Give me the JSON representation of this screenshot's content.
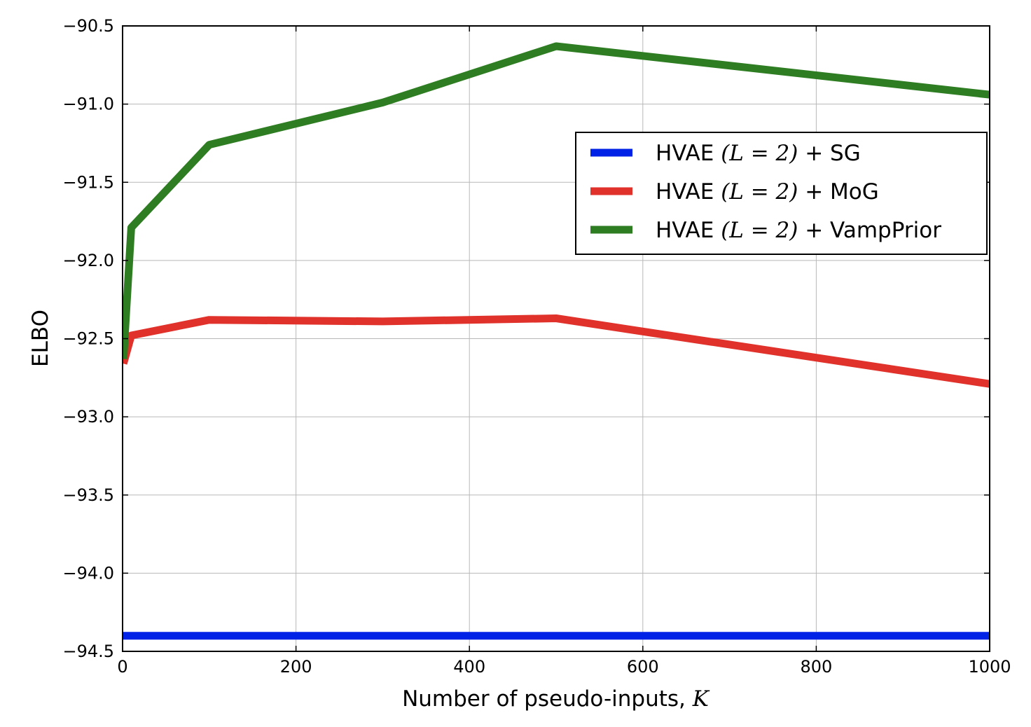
{
  "chart_data": {
    "type": "line",
    "xlabel_prefix": "Number of pseudo-inputs, ",
    "xlabel_var": "K",
    "ylabel": "ELBO",
    "xlim": [
      0,
      1000
    ],
    "ylim": [
      -94.5,
      -90.5
    ],
    "x_ticks": [
      "0",
      "200",
      "400",
      "600",
      "800",
      "1000"
    ],
    "y_ticks": [
      "−90.5",
      "−91.0",
      "−91.5",
      "−92.0",
      "−92.5",
      "−93.0",
      "−93.5",
      "−94.0",
      "−94.5"
    ],
    "grid": true,
    "legend_position": "upper right",
    "series": [
      {
        "name_prefix": "HVAE ",
        "name_math": "(L = 2)",
        "name_suffix": " + SG",
        "color": "#0022e6",
        "x": [
          0,
          1000
        ],
        "y": [
          -94.4,
          -94.4
        ]
      },
      {
        "name_prefix": "HVAE ",
        "name_math": "(L = 2)",
        "name_suffix": " + MoG",
        "color": "#e0312b",
        "x": [
          1,
          10,
          100,
          300,
          500,
          1000
        ],
        "y": [
          -92.66,
          -92.48,
          -92.38,
          -92.39,
          -92.37,
          -92.79
        ]
      },
      {
        "name_prefix": "HVAE ",
        "name_math": "(L = 2)",
        "name_suffix": " + VampPrior",
        "color": "#2e7d22",
        "x": [
          1,
          10,
          100,
          300,
          500,
          1000
        ],
        "y": [
          -92.63,
          -91.79,
          -91.26,
          -90.99,
          -90.63,
          -90.94
        ]
      }
    ]
  }
}
